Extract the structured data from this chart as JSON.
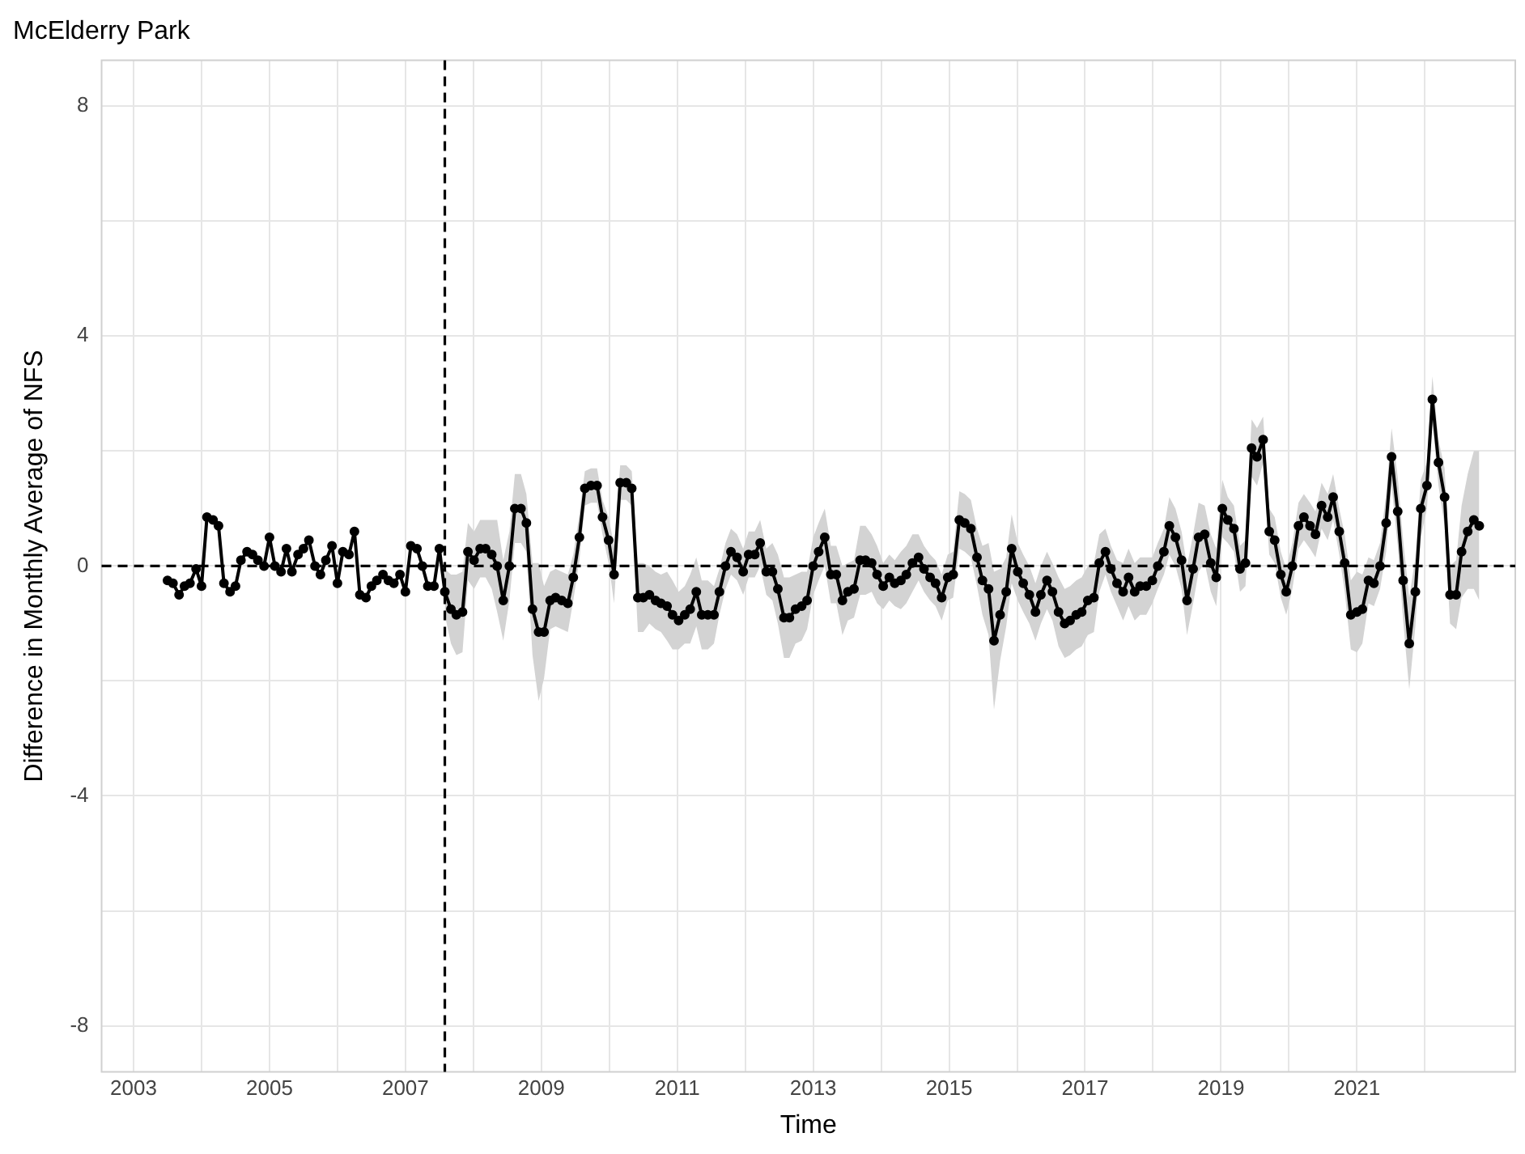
{
  "chart_data": {
    "type": "line",
    "title": "McElderry Park",
    "xlabel": "Time",
    "ylabel": "Difference in Monthly Average of NFS",
    "xlim": [
      2002.53,
      2023.33
    ],
    "ylim": [
      -8.8,
      8.8
    ],
    "xticks": [
      2003,
      {
        "value": 2004,
        "label": null
      },
      2005,
      {
        "value": 2006,
        "label": null
      },
      2007,
      {
        "value": 2008,
        "label": null
      },
      2009,
      {
        "value": 2010,
        "label": null
      },
      2011,
      {
        "value": 2012,
        "label": null
      },
      2013,
      {
        "value": 2014,
        "label": null
      },
      2015,
      {
        "value": 2016,
        "label": null
      },
      2017,
      {
        "value": 2018,
        "label": null
      },
      2019,
      {
        "value": 2020,
        "label": null
      },
      2021,
      {
        "value": 2022,
        "label": null
      }
    ],
    "yticks": [
      -8,
      {
        "value": -6,
        "label": null
      },
      -4,
      {
        "value": -2,
        "label": null
      },
      0,
      {
        "value": 2,
        "label": null
      },
      4,
      {
        "value": 6,
        "label": null
      },
      8
    ],
    "grid": true,
    "legend": false,
    "marker": "circle",
    "line_style": "solid",
    "ref_lines": [
      {
        "axis": "y",
        "value": 0,
        "line_style": "dashed",
        "color": "#000000"
      },
      {
        "axis": "x",
        "value": 2007.58,
        "line_style": "dashed",
        "color": "#000000"
      }
    ],
    "series": [
      {
        "color": "#000000",
        "x": [
          2003.5,
          2003.58,
          2003.67,
          2003.75,
          2003.83,
          2003.92,
          2004,
          2004.08,
          2004.17,
          2004.25,
          2004.33,
          2004.42,
          2004.5,
          2004.58,
          2004.67,
          2004.75,
          2004.83,
          2004.92,
          2005,
          2005.08,
          2005.17,
          2005.25,
          2005.33,
          2005.42,
          2005.5,
          2005.58,
          2005.67,
          2005.75,
          2005.83,
          2005.92,
          2006,
          2006.08,
          2006.17,
          2006.25,
          2006.33,
          2006.42,
          2006.5,
          2006.58,
          2006.67,
          2006.75,
          2006.83,
          2006.92,
          2007,
          2007.08,
          2007.17,
          2007.25,
          2007.33,
          2007.42,
          2007.5,
          2007.58,
          2007.67,
          2007.75,
          2007.84,
          2007.92,
          2008.01,
          2008.1,
          2008.18,
          2008.27,
          2008.35,
          2008.44,
          2008.53,
          2008.61,
          2008.7,
          2008.78,
          2008.87,
          2008.96,
          2009.04,
          2009.13,
          2009.21,
          2009.3,
          2009.39,
          2009.47,
          2009.56,
          2009.64,
          2009.73,
          2009.82,
          2009.9,
          2009.99,
          2010.07,
          2010.16,
          2010.25,
          2010.33,
          2010.42,
          2010.5,
          2010.59,
          2010.68,
          2010.76,
          2010.85,
          2010.93,
          2011.02,
          2011.11,
          2011.19,
          2011.28,
          2011.36,
          2011.45,
          2011.54,
          2011.62,
          2011.71,
          2011.79,
          2011.88,
          2011.97,
          2012.05,
          2012.14,
          2012.22,
          2012.31,
          2012.4,
          2012.48,
          2012.57,
          2012.65,
          2012.74,
          2012.83,
          2012.91,
          2013,
          2013.08,
          2013.17,
          2013.26,
          2013.34,
          2013.43,
          2013.51,
          2013.6,
          2013.69,
          2013.77,
          2013.86,
          2013.94,
          2014.03,
          2014.12,
          2014.2,
          2014.29,
          2014.37,
          2014.46,
          2014.55,
          2014.63,
          2014.72,
          2014.8,
          2014.89,
          2014.98,
          2015.06,
          2015.15,
          2015.23,
          2015.32,
          2015.41,
          2015.49,
          2015.58,
          2015.66,
          2015.75,
          2015.84,
          2015.92,
          2016.01,
          2016.09,
          2016.18,
          2016.27,
          2016.35,
          2016.44,
          2016.52,
          2016.61,
          2016.7,
          2016.78,
          2016.87,
          2016.95,
          2017.04,
          2017.13,
          2017.21,
          2017.3,
          2017.38,
          2017.47,
          2017.56,
          2017.64,
          2017.73,
          2017.81,
          2017.9,
          2017.99,
          2018.07,
          2018.16,
          2018.24,
          2018.33,
          2018.42,
          2018.5,
          2018.59,
          2018.67,
          2018.76,
          2018.85,
          2018.93,
          2019.02,
          2019.1,
          2019.19,
          2019.28,
          2019.36,
          2019.45,
          2019.53,
          2019.62,
          2019.71,
          2019.79,
          2019.88,
          2019.96,
          2020.05,
          2020.14,
          2020.22,
          2020.31,
          2020.39,
          2020.48,
          2020.57,
          2020.65,
          2020.74,
          2020.82,
          2020.91,
          2021,
          2021.08,
          2021.17,
          2021.25,
          2021.34,
          2021.43,
          2021.51,
          2021.6,
          2021.68,
          2021.77,
          2021.86,
          2021.94,
          2022.03,
          2022.11,
          2022.2,
          2022.29,
          2022.37,
          2022.46,
          2022.54,
          2022.63,
          2022.72,
          2022.8
        ],
        "values": [
          -0.25,
          -0.3,
          -0.5,
          -0.35,
          -0.3,
          -0.05,
          -0.35,
          0.85,
          0.8,
          0.7,
          -0.3,
          -0.45,
          -0.35,
          0.1,
          0.25,
          0.2,
          0.1,
          0.0,
          0.5,
          0.0,
          -0.1,
          0.3,
          -0.1,
          0.2,
          0.3,
          0.45,
          0.0,
          -0.15,
          0.1,
          0.35,
          -0.3,
          0.25,
          0.2,
          0.6,
          -0.5,
          -0.55,
          -0.35,
          -0.25,
          -0.15,
          -0.25,
          -0.3,
          -0.15,
          -0.45,
          0.35,
          0.3,
          0.0,
          -0.35,
          -0.35,
          0.3,
          -0.45,
          -0.75,
          -0.85,
          -0.8,
          0.25,
          0.1,
          0.3,
          0.3,
          0.2,
          0.0,
          -0.6,
          0.0,
          1.0,
          1.0,
          0.75,
          -0.75,
          -1.15,
          -1.15,
          -0.6,
          -0.55,
          -0.6,
          -0.65,
          -0.2,
          0.5,
          1.35,
          1.4,
          1.4,
          0.85,
          0.45,
          -0.15,
          1.45,
          1.45,
          1.35,
          -0.55,
          -0.55,
          -0.5,
          -0.6,
          -0.65,
          -0.7,
          -0.85,
          -0.95,
          -0.85,
          -0.75,
          -0.45,
          -0.85,
          -0.85,
          -0.85,
          -0.45,
          0.0,
          0.25,
          0.15,
          -0.1,
          0.2,
          0.2,
          0.4,
          -0.1,
          -0.1,
          -0.4,
          -0.9,
          -0.9,
          -0.75,
          -0.7,
          -0.6,
          0.0,
          0.25,
          0.5,
          -0.15,
          -0.15,
          -0.6,
          -0.45,
          -0.4,
          0.1,
          0.1,
          0.05,
          -0.15,
          -0.35,
          -0.2,
          -0.3,
          -0.25,
          -0.15,
          0.05,
          0.15,
          -0.05,
          -0.2,
          -0.3,
          -0.55,
          -0.2,
          -0.15,
          0.8,
          0.75,
          0.65,
          0.15,
          -0.25,
          -0.4,
          -1.3,
          -0.85,
          -0.45,
          0.3,
          -0.1,
          -0.3,
          -0.5,
          -0.8,
          -0.5,
          -0.25,
          -0.45,
          -0.8,
          -1.0,
          -0.95,
          -0.85,
          -0.8,
          -0.6,
          -0.55,
          0.05,
          0.25,
          -0.05,
          -0.3,
          -0.45,
          -0.2,
          -0.45,
          -0.35,
          -0.35,
          -0.25,
          0.0,
          0.25,
          0.7,
          0.5,
          0.1,
          -0.6,
          -0.05,
          0.5,
          0.55,
          0.05,
          -0.2,
          1.0,
          0.8,
          0.65,
          -0.05,
          0.05,
          2.05,
          1.9,
          2.2,
          0.6,
          0.45,
          -0.15,
          -0.45,
          0.0,
          0.7,
          0.85,
          0.7,
          0.55,
          1.05,
          0.85,
          1.2,
          0.6,
          0.05,
          -0.85,
          -0.8,
          -0.75,
          -0.25,
          -0.3,
          0.0,
          0.75,
          1.9,
          0.95,
          -0.25,
          -1.35,
          -0.45,
          1.0,
          1.4,
          2.9,
          1.8,
          1.2,
          -0.5,
          -0.5,
          0.25,
          0.6,
          0.8,
          0.7
        ],
        "lower": [
          null,
          null,
          null,
          null,
          null,
          null,
          null,
          null,
          null,
          null,
          null,
          null,
          null,
          null,
          null,
          null,
          null,
          null,
          null,
          null,
          null,
          null,
          null,
          null,
          null,
          null,
          null,
          null,
          null,
          null,
          null,
          null,
          null,
          null,
          null,
          null,
          null,
          null,
          null,
          null,
          null,
          null,
          null,
          null,
          null,
          null,
          null,
          null,
          null,
          -0.85,
          -1.35,
          -1.55,
          -1.5,
          -0.25,
          -0.4,
          -0.2,
          -0.2,
          -0.4,
          -0.8,
          -1.3,
          -0.6,
          0.4,
          0.4,
          0.25,
          -1.55,
          -2.35,
          -1.95,
          -1.1,
          -1.05,
          -1.1,
          -1.15,
          -0.6,
          0.1,
          1.05,
          1.1,
          1.1,
          0.55,
          0.05,
          -0.65,
          1.15,
          1.15,
          1.05,
          -1.15,
          -1.15,
          -1.0,
          -1.1,
          -1.15,
          -1.3,
          -1.45,
          -1.45,
          -1.35,
          -1.35,
          -1.05,
          -1.45,
          -1.45,
          -1.35,
          -0.85,
          -0.4,
          -0.15,
          -0.25,
          -0.5,
          -0.2,
          -0.2,
          0.0,
          -0.5,
          -0.6,
          -1.0,
          -1.6,
          -1.6,
          -1.35,
          -1.3,
          -1.1,
          -0.5,
          -0.25,
          0.0,
          -0.65,
          -0.65,
          -1.2,
          -0.95,
          -0.9,
          -0.5,
          -0.5,
          -0.45,
          -0.65,
          -0.75,
          -0.6,
          -0.7,
          -0.75,
          -0.65,
          -0.45,
          -0.25,
          -0.45,
          -0.6,
          -0.7,
          -0.95,
          -0.6,
          -0.55,
          0.3,
          0.25,
          0.15,
          -0.35,
          -0.85,
          -1.2,
          -2.5,
          -1.65,
          -1.05,
          -0.3,
          -0.6,
          -0.8,
          -1.0,
          -1.3,
          -1.0,
          -0.75,
          -0.95,
          -1.4,
          -1.6,
          -1.55,
          -1.45,
          -1.4,
          -1.2,
          -1.15,
          -0.45,
          -0.15,
          -0.45,
          -0.7,
          -0.95,
          -0.7,
          -0.95,
          -0.85,
          -0.85,
          -0.65,
          -0.4,
          -0.15,
          0.2,
          0.0,
          -0.4,
          -1.2,
          -0.65,
          -0.1,
          0.05,
          -0.45,
          -0.7,
          0.5,
          0.4,
          0.25,
          -0.45,
          -0.35,
          1.55,
          1.4,
          1.8,
          0.2,
          0.05,
          -0.55,
          -0.85,
          -0.4,
          0.3,
          0.45,
          0.3,
          0.15,
          0.65,
          0.45,
          0.8,
          0.2,
          -0.45,
          -1.45,
          -1.5,
          -1.35,
          -0.65,
          -0.7,
          -0.4,
          0.25,
          1.4,
          0.35,
          -0.95,
          -2.15,
          -1.05,
          0.5,
          1.0,
          2.5,
          1.4,
          0.7,
          -1.0,
          -1.1,
          -0.55,
          -0.4,
          -0.4,
          -0.6
        ],
        "upper": [
          null,
          null,
          null,
          null,
          null,
          null,
          null,
          null,
          null,
          null,
          null,
          null,
          null,
          null,
          null,
          null,
          null,
          null,
          null,
          null,
          null,
          null,
          null,
          null,
          null,
          null,
          null,
          null,
          null,
          null,
          null,
          null,
          null,
          null,
          null,
          null,
          null,
          null,
          null,
          null,
          null,
          null,
          null,
          null,
          null,
          null,
          null,
          null,
          null,
          -0.05,
          -0.15,
          -0.15,
          -0.1,
          0.75,
          0.6,
          0.8,
          0.8,
          0.8,
          0.8,
          0.1,
          0.6,
          1.6,
          1.6,
          1.25,
          0.05,
          0.05,
          -0.35,
          -0.1,
          -0.05,
          -0.1,
          -0.15,
          0.2,
          0.9,
          1.65,
          1.7,
          1.7,
          1.15,
          0.85,
          0.35,
          1.75,
          1.75,
          1.65,
          0.05,
          0.05,
          0.0,
          -0.1,
          -0.15,
          -0.1,
          -0.25,
          -0.45,
          -0.35,
          -0.15,
          0.15,
          -0.25,
          -0.25,
          -0.35,
          -0.05,
          0.4,
          0.65,
          0.55,
          0.3,
          0.6,
          0.6,
          0.8,
          0.3,
          0.4,
          0.2,
          -0.2,
          -0.2,
          -0.15,
          -0.1,
          -0.1,
          0.5,
          0.75,
          1.0,
          0.35,
          0.35,
          0.0,
          0.05,
          0.1,
          0.7,
          0.7,
          0.55,
          0.35,
          0.05,
          0.2,
          0.1,
          0.25,
          0.35,
          0.55,
          0.55,
          0.35,
          0.2,
          0.1,
          -0.15,
          0.2,
          0.25,
          1.3,
          1.25,
          1.15,
          0.65,
          0.35,
          0.4,
          -0.1,
          -0.05,
          0.15,
          0.9,
          0.4,
          0.2,
          0.0,
          -0.3,
          0.0,
          0.25,
          0.05,
          -0.2,
          -0.4,
          -0.35,
          -0.25,
          -0.2,
          0.0,
          0.05,
          0.55,
          0.65,
          0.35,
          0.1,
          0.05,
          0.3,
          0.05,
          0.15,
          0.15,
          0.15,
          0.4,
          0.65,
          1.2,
          1.0,
          0.6,
          0.0,
          0.55,
          1.1,
          1.05,
          0.55,
          0.3,
          1.5,
          1.2,
          1.05,
          0.35,
          0.45,
          2.55,
          2.4,
          2.6,
          1.0,
          0.85,
          0.25,
          -0.05,
          0.4,
          1.1,
          1.25,
          1.1,
          0.95,
          1.45,
          1.25,
          1.6,
          1.0,
          0.55,
          -0.25,
          -0.1,
          -0.15,
          0.15,
          0.1,
          0.4,
          1.25,
          2.4,
          1.55,
          0.45,
          -0.55,
          0.15,
          1.5,
          1.8,
          3.3,
          2.2,
          1.7,
          0.0,
          0.1,
          1.05,
          1.6,
          2.0,
          2.0
        ]
      }
    ]
  }
}
